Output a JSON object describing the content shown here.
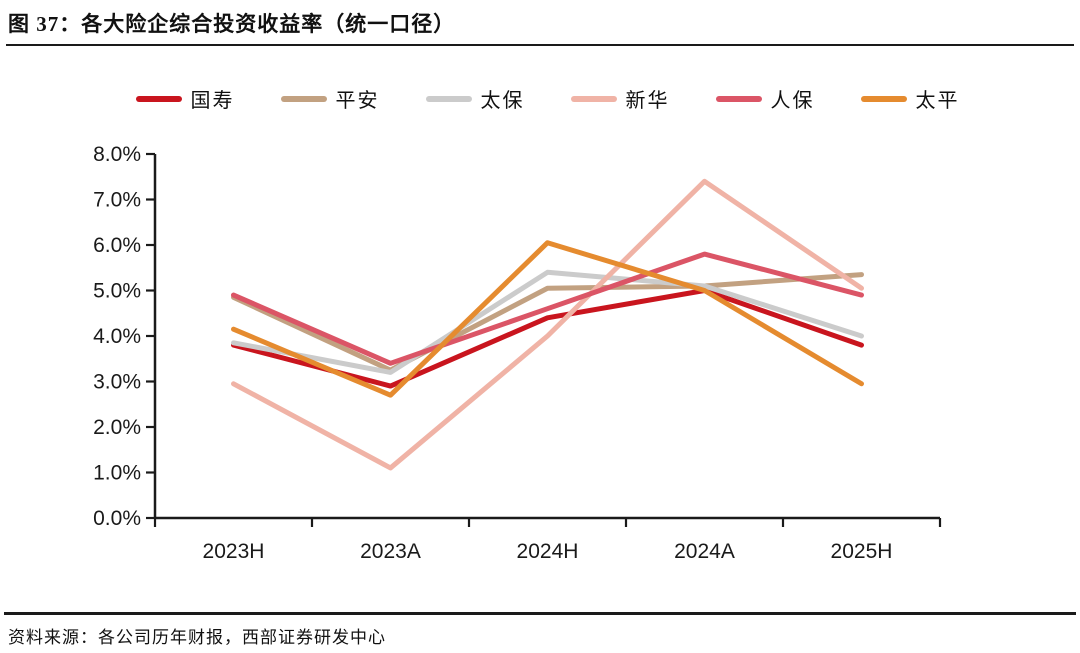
{
  "title": "图 37：各大险企综合投资收益率（统一口径）",
  "source": "资料来源：各公司历年财报，西部证券研发中心",
  "axis": {
    "y_tick_labels": [
      "0.0%",
      "1.0%",
      "2.0%",
      "3.0%",
      "4.0%",
      "5.0%",
      "6.0%",
      "7.0%",
      "8.0%"
    ]
  },
  "chart_data": {
    "type": "line",
    "title": "各大险企综合投资收益率（统一口径）",
    "xlabel": "",
    "ylabel": "",
    "categories": [
      "2023H",
      "2023A",
      "2024H",
      "2024A",
      "2025H"
    ],
    "series": [
      {
        "name": "国寿",
        "color": "#C9151E",
        "values": [
          3.8,
          2.9,
          4.4,
          5.0,
          3.8
        ]
      },
      {
        "name": "平安",
        "color": "#C2A181",
        "values": [
          4.85,
          3.25,
          5.05,
          5.1,
          5.35
        ]
      },
      {
        "name": "太保",
        "color": "#CBCBCB",
        "values": [
          3.85,
          3.2,
          5.4,
          5.1,
          4.0
        ]
      },
      {
        "name": "新华",
        "color": "#F0B3A6",
        "values": [
          2.95,
          1.1,
          4.0,
          7.4,
          5.05
        ]
      },
      {
        "name": "人保",
        "color": "#DB5566",
        "values": [
          4.9,
          3.4,
          4.6,
          5.8,
          4.9
        ]
      },
      {
        "name": "太平",
        "color": "#E58B2F",
        "values": [
          4.15,
          2.7,
          6.05,
          5.0,
          2.95
        ]
      }
    ],
    "ylim": [
      0,
      8
    ],
    "ytick_step": 1,
    "ytick_format": "0.0%",
    "grid": false,
    "legend_position": "top"
  }
}
